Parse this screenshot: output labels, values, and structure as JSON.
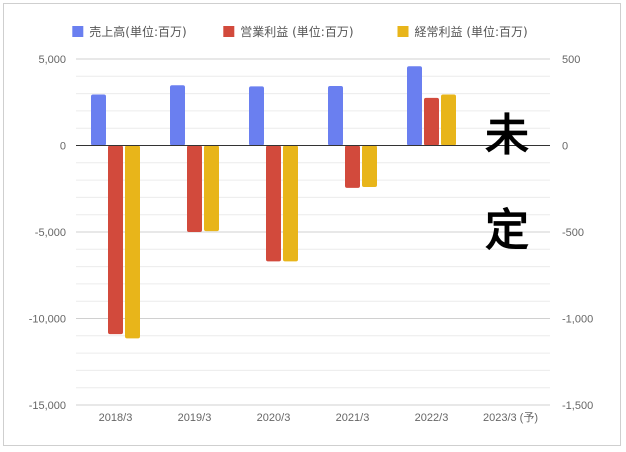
{
  "chart_data": {
    "type": "bar",
    "categories": [
      "2018/3",
      "2019/3",
      "2020/3",
      "2021/3",
      "2022/3",
      "2023/3 (予)"
    ],
    "series": [
      {
        "name": "売上高(単位:百万)",
        "axis": "left",
        "color": "#6a7ff0",
        "values": [
          2950,
          3480,
          3420,
          3440,
          4580,
          null
        ]
      },
      {
        "name": "営業利益 (単位:百万)",
        "axis": "right",
        "color": "#d24a3c",
        "values": [
          -1090,
          -500,
          -670,
          -245,
          275,
          null
        ]
      },
      {
        "name": "経常利益 (単位:百万)",
        "axis": "right",
        "color": "#e8b51a",
        "values": [
          -1115,
          -495,
          -670,
          -240,
          295,
          null
        ]
      }
    ],
    "left_axis": {
      "ylim": [
        -15000,
        5000
      ],
      "ticks": [
        "5,000",
        "0",
        "-5,000",
        "-10,000",
        "-15,000"
      ]
    },
    "right_axis": {
      "ylim": [
        -1500,
        500
      ],
      "ticks": [
        "500",
        "0",
        "-500",
        "-1,000",
        "-1,500"
      ]
    },
    "legend_position": "top",
    "grid": true,
    "annotation": [
      "未",
      "定"
    ]
  }
}
